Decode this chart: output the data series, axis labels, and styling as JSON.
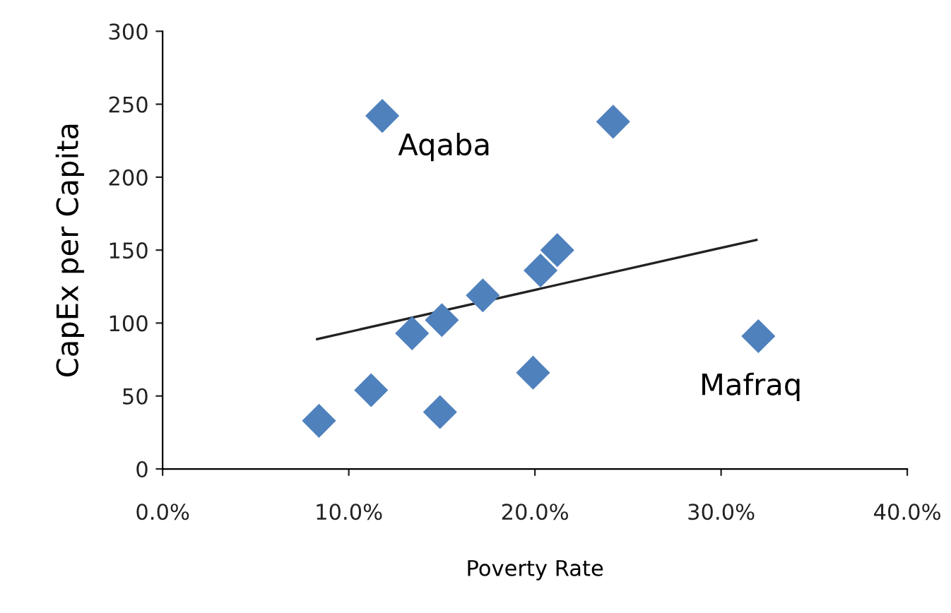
{
  "chart_data": {
    "type": "scatter",
    "xlabel": "Poverty Rate",
    "ylabel": "CapEx per Capita",
    "grid": false,
    "xlim": [
      0,
      40
    ],
    "xticks": [
      {
        "value": 0,
        "label": "0.0%"
      },
      {
        "value": 10,
        "label": "10.0%"
      },
      {
        "value": 20,
        "label": "20.0%"
      },
      {
        "value": 30,
        "label": "30.0%"
      },
      {
        "value": 40,
        "label": "40.0%"
      }
    ],
    "ylim": [
      0,
      300
    ],
    "yticks": [
      0,
      50,
      100,
      150,
      200,
      250,
      300
    ],
    "series": [
      {
        "marker": "diamond",
        "color": "#4f81bd",
        "x": [
          8.4,
          11.2,
          11.8,
          13.4,
          15.0,
          14.9,
          17.2,
          19.9,
          20.3,
          21.2,
          24.2,
          32.0
        ],
        "values": [
          33,
          54,
          242,
          93,
          102,
          39,
          119,
          66,
          136,
          150,
          238,
          91
        ]
      },
      {
        "type": "line",
        "marker": "none",
        "color": "#222222",
        "x": [
          8.3,
          31.9
        ],
        "values": [
          89,
          157
        ]
      }
    ],
    "annotations": [
      {
        "text": "Aqaba",
        "x": 11.8,
        "y": 242
      },
      {
        "text": "Mafraq",
        "x": 32.0,
        "y": 91
      }
    ]
  }
}
